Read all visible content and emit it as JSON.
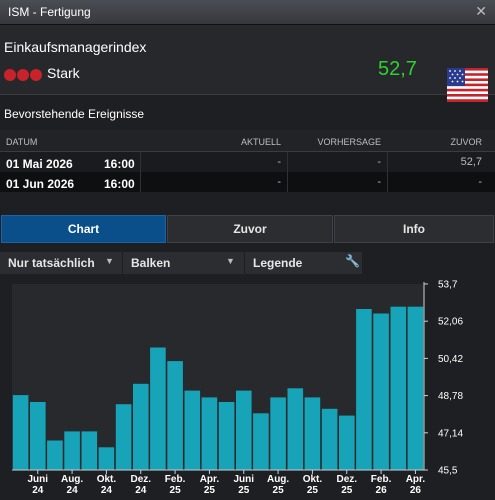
{
  "window": {
    "title": "ISM - Fertigung",
    "close_icon": "close-icon"
  },
  "indicator": {
    "name": "Einkaufsmanagerindex",
    "strength": "Stark",
    "strength_dots": 3,
    "strength_color": "#c8232b",
    "value": "52,7",
    "value_color": "#2fd12f",
    "country_flag": "us-flag-icon"
  },
  "events": {
    "title": "Bevorstehende Ereignisse",
    "columns": {
      "date": "DATUM",
      "actual": "AKTUELL",
      "forecast": "VORHERSAGE",
      "previous": "ZUVOR"
    },
    "rows": [
      {
        "date": "01 Mai 2026",
        "time": "16:00",
        "actual": "-",
        "forecast": "-",
        "previous": "52,7"
      },
      {
        "date": "01 Jun 2026",
        "time": "16:00",
        "actual": "-",
        "forecast": "-",
        "previous": "-"
      }
    ]
  },
  "tabs": [
    {
      "label": "Chart",
      "active": true
    },
    {
      "label": "Zuvor",
      "active": false
    },
    {
      "label": "Info",
      "active": false
    }
  ],
  "toolbar": {
    "filter": "Nur tatsächlich",
    "type": "Balken",
    "legend": "Legende",
    "settings_icon": "wrench-icon"
  },
  "chart_data": {
    "type": "bar",
    "x": [
      "2024-05",
      "2024-06",
      "2024-07",
      "2024-08",
      "2024-09",
      "2024-10",
      "2024-11",
      "2024-12",
      "2025-01",
      "2025-02",
      "2025-03",
      "2025-04",
      "2025-05",
      "2025-06",
      "2025-07",
      "2025-08",
      "2025-09",
      "2025-10",
      "2025-11",
      "2025-12",
      "2026-01",
      "2026-02",
      "2026-03",
      "2026-04"
    ],
    "values": [
      48.8,
      48.5,
      46.8,
      47.2,
      47.2,
      46.5,
      48.4,
      49.3,
      50.9,
      50.3,
      49.0,
      48.7,
      48.5,
      49.0,
      48.0,
      48.7,
      49.1,
      48.7,
      48.2,
      47.9,
      52.6,
      52.4,
      52.7,
      52.7
    ],
    "tick_labels": [
      {
        "x": "2024-06",
        "top": "Juni",
        "bottom": "24"
      },
      {
        "x": "2024-08",
        "top": "Aug.",
        "bottom": "24"
      },
      {
        "x": "2024-10",
        "top": "Okt.",
        "bottom": "24"
      },
      {
        "x": "2024-12",
        "top": "Dez.",
        "bottom": "24"
      },
      {
        "x": "2025-02",
        "top": "Feb.",
        "bottom": "25"
      },
      {
        "x": "2025-04",
        "top": "Apr.",
        "bottom": "25"
      },
      {
        "x": "2025-06",
        "top": "Juni",
        "bottom": "25"
      },
      {
        "x": "2025-08",
        "top": "Aug.",
        "bottom": "25"
      },
      {
        "x": "2025-10",
        "top": "Okt.",
        "bottom": "25"
      },
      {
        "x": "2025-12",
        "top": "Dez.",
        "bottom": "25"
      },
      {
        "x": "2026-02",
        "top": "Feb.",
        "bottom": "26"
      },
      {
        "x": "2026-04",
        "top": "Apr.",
        "bottom": "26"
      }
    ],
    "y_ticks": [
      "53,7",
      "52,06",
      "50,42",
      "48,78",
      "47,14",
      "45,5"
    ],
    "ylim": [
      45.5,
      53.7
    ],
    "bar_color": "#17a3b8",
    "plot_background": "#27292d",
    "grid": false
  }
}
